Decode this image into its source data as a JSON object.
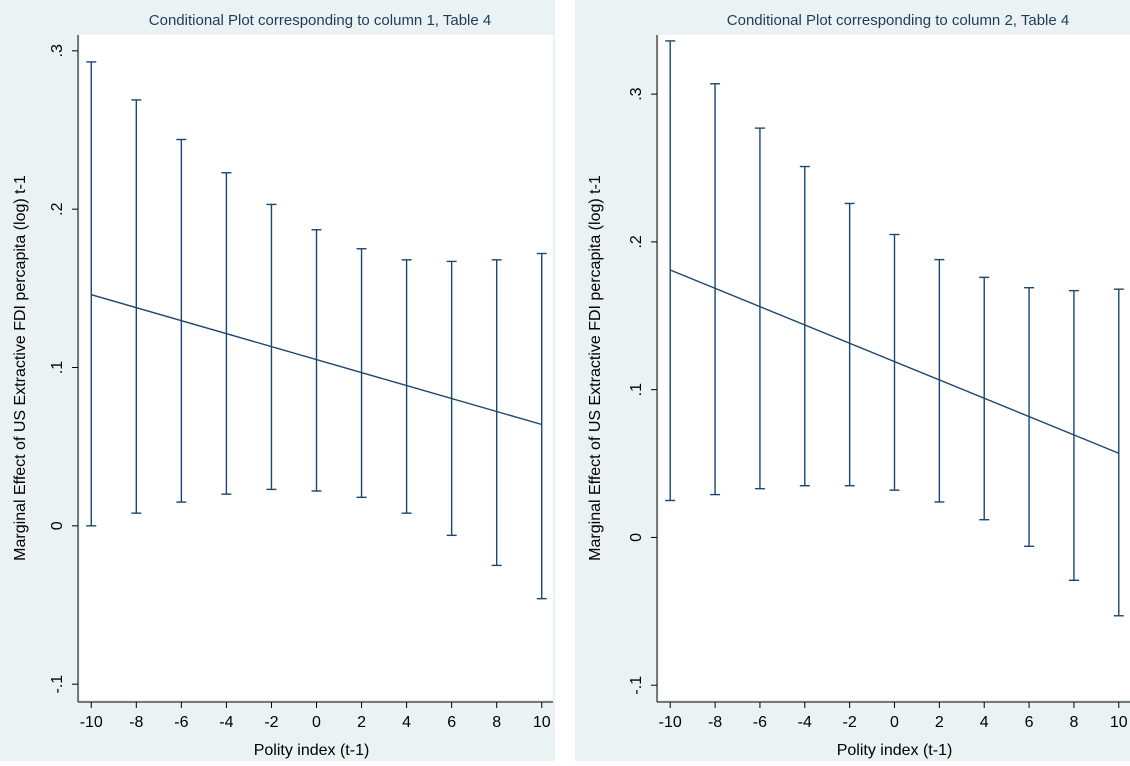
{
  "chart_data": [
    {
      "type": "line",
      "title": "Conditional Plot corresponding to column 1, Table 4",
      "xlabel": "Polity index (t-1)",
      "ylabel": "Marginal Effect of US Extractive FDI percapita (log) t-1",
      "x_ticks": [
        -10,
        -8,
        -6,
        -4,
        -2,
        0,
        2,
        4,
        6,
        8,
        10
      ],
      "x_tick_labels": [
        "-10",
        "-8",
        "-6",
        "-4",
        "-2",
        "0",
        "2",
        "4",
        "6",
        "8",
        "10"
      ],
      "y_ticks": [
        -0.1,
        0,
        0.1,
        0.2,
        0.3
      ],
      "y_tick_labels": [
        "-.1",
        "0",
        ".1",
        ".2",
        ".3"
      ],
      "xlim": [
        -10.5,
        10.5
      ],
      "ylim": [
        -0.11,
        0.31
      ],
      "grid": false,
      "legend": "none",
      "series": [
        {
          "x": [
            -10,
            10
          ],
          "y": [
            0.146,
            0.064
          ]
        }
      ],
      "error_bars": {
        "x": [
          -10,
          -8,
          -6,
          -4,
          -2,
          0,
          2,
          4,
          6,
          8,
          10
        ],
        "upper": [
          0.293,
          0.269,
          0.244,
          0.223,
          0.203,
          0.187,
          0.175,
          0.168,
          0.167,
          0.168,
          0.172
        ],
        "lower": [
          0.0,
          0.008,
          0.015,
          0.02,
          0.023,
          0.022,
          0.018,
          0.008,
          -0.006,
          -0.025,
          -0.046
        ]
      }
    },
    {
      "type": "line",
      "title": "Conditional Plot corresponding to column 2, Table 4",
      "xlabel": "Polity index (t-1)",
      "ylabel": "Marginal Effect of US Extractive FDI percapita (log) t-1",
      "x_ticks": [
        -10,
        -8,
        -6,
        -4,
        -2,
        0,
        2,
        4,
        6,
        8,
        10
      ],
      "x_tick_labels": [
        "-10",
        "-8",
        "-6",
        "-4",
        "-2",
        "0",
        "2",
        "4",
        "6",
        "8",
        "10"
      ],
      "y_ticks": [
        -0.1,
        0,
        0.1,
        0.2,
        0.3
      ],
      "y_tick_labels": [
        "-.1",
        "0",
        ".1",
        ".2",
        ".3"
      ],
      "xlim": [
        -10.5,
        10.5
      ],
      "ylim": [
        -0.11,
        0.34
      ],
      "grid": false,
      "legend": "none",
      "series": [
        {
          "x": [
            -10,
            10
          ],
          "y": [
            0.181,
            0.057
          ]
        }
      ],
      "error_bars": {
        "x": [
          -10,
          -8,
          -6,
          -4,
          -2,
          0,
          2,
          4,
          6,
          8,
          10
        ],
        "upper": [
          0.336,
          0.307,
          0.277,
          0.251,
          0.226,
          0.205,
          0.188,
          0.176,
          0.169,
          0.167,
          0.168
        ],
        "lower": [
          0.025,
          0.029,
          0.033,
          0.035,
          0.035,
          0.032,
          0.024,
          0.012,
          -0.006,
          -0.029,
          -0.053
        ]
      }
    }
  ],
  "colors": {
    "background": "#eaf2f3",
    "plot_region": "#ffffff",
    "line": "#1a476f",
    "axis": "#000000",
    "text": "#1e3c5a"
  }
}
